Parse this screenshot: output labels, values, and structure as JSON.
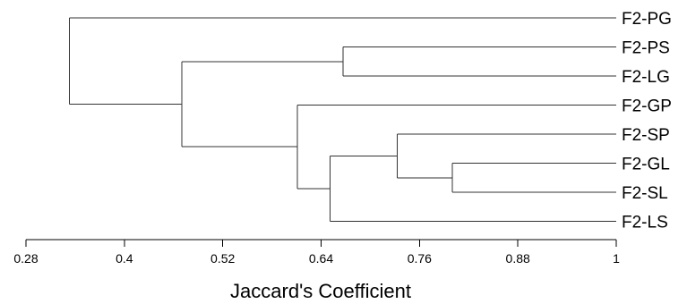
{
  "chart_data": {
    "type": "dendrogram",
    "xlabel": "Jaccard's Coefficient",
    "xlim": [
      0.28,
      1
    ],
    "ticks": [
      0.28,
      0.4,
      0.52,
      0.64,
      0.76,
      0.88,
      1
    ],
    "tick_labels": [
      "0.28",
      "0.4",
      "0.52",
      "0.64",
      "0.76",
      "0.88",
      "1"
    ],
    "leaves": [
      "F2-PG",
      "F2-PS",
      "F2-LG",
      "F2-GP",
      "F2-SP",
      "F2-GL",
      "F2-SL",
      "F2-LS"
    ],
    "merges": [
      {
        "id": "c1",
        "a": "F2-GL",
        "b": "F2-SL",
        "similarity": 0.8
      },
      {
        "id": "c2",
        "a": "F2-SP",
        "b": "c1",
        "similarity": 0.733
      },
      {
        "id": "c3",
        "a": "c2",
        "b": "F2-LS",
        "similarity": 0.651
      },
      {
        "id": "c4",
        "a": "F2-GP",
        "b": "c3",
        "similarity": 0.611
      },
      {
        "id": "c5",
        "a": "F2-PS",
        "b": "F2-LG",
        "similarity": 0.667
      },
      {
        "id": "c6",
        "a": "c5",
        "b": "c4",
        "similarity": 0.47
      },
      {
        "id": "c7",
        "a": "F2-PG",
        "b": "c6",
        "similarity": 0.333
      }
    ]
  }
}
